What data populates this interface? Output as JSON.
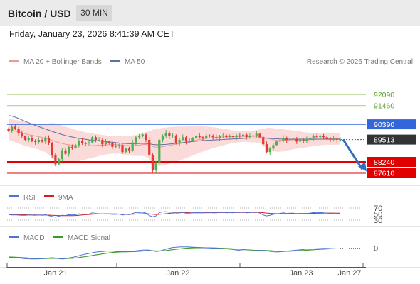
{
  "header": {
    "title": "Bitcoin / USD",
    "timeframe": "30 MIN"
  },
  "datetime": "Friday, January 23, 2026 8:41:39 AM CET",
  "legend": {
    "ma20": "MA 20 + Bollinger Bands",
    "ma50": "MA 50",
    "copyright": "Research © 2026 Trading Central"
  },
  "colors": {
    "bg": "#ebebeb",
    "up": "#4caf50",
    "down": "#e53935",
    "resistance": "#b5d38a",
    "pivot": "#3366dd",
    "support": "#e00000",
    "current": "#333333",
    "ma20": "#ec9a9a",
    "ma50": "#5e6fa3",
    "band": "#fbdada",
    "arrow": "#2f6fbf",
    "rsi": "#4d73d6",
    "rsi_ma": "#d42020",
    "macd": "#4d73d6",
    "macd_signal": "#3c9a2a"
  },
  "chart_data": [
    {
      "type": "candlestick",
      "title": "Bitcoin / USD",
      "ylim": [
        86900,
        93600
      ],
      "x_labels": [
        "Jan 21",
        "Jan 22",
        "Jan 23",
        "Jan 27"
      ],
      "levels": [
        {
          "value": 92090,
          "label": "92090",
          "role": "resistance"
        },
        {
          "value": 91460,
          "label": "91460",
          "role": "resistance"
        },
        {
          "value": 90390,
          "label": "90390",
          "role": "pivot"
        },
        {
          "value": 89513,
          "label": "89513",
          "role": "current"
        },
        {
          "value": 88240,
          "label": "88240",
          "role": "support"
        },
        {
          "value": 87610,
          "label": "87610",
          "role": "support"
        }
      ],
      "closes": [
        90000,
        90250,
        90150,
        89900,
        89700,
        89500,
        89600,
        89450,
        89380,
        89500,
        89400,
        89600,
        89300,
        88600,
        88100,
        88400,
        88900,
        88700,
        89100,
        89050,
        89200,
        89450,
        89300,
        89300,
        89350,
        89650,
        89500,
        89500,
        89250,
        89400,
        89300,
        89100,
        89150,
        89200,
        88800,
        89000,
        88900,
        89350,
        89650,
        89700,
        89800,
        89500,
        88650,
        87750,
        88150,
        89500,
        89700,
        89900,
        89700,
        89750,
        89300,
        89500,
        89650,
        89400,
        89450,
        89600,
        89700,
        89650,
        89600,
        89750,
        89700,
        89650,
        89600,
        89700,
        89750,
        89650,
        89700,
        89650,
        89750,
        89700,
        89800,
        89650,
        89700,
        89750,
        89850,
        89650,
        89250,
        88800,
        89000,
        89200,
        89400,
        89450,
        89600,
        89500,
        89550,
        89550,
        89400,
        89500,
        89450,
        89550,
        89600,
        89700,
        89650,
        89700,
        89650,
        89550,
        89500,
        89550,
        89500,
        89513
      ],
      "ma20": [
        90100,
        90050,
        90000,
        89950,
        89900,
        89850,
        89800,
        89760,
        89720,
        89680,
        89640,
        89600,
        89540,
        89470,
        89400,
        89340,
        89290,
        89250,
        89220,
        89190,
        89170,
        89160,
        89150,
        89150,
        89160,
        89170,
        89180,
        89190,
        89200,
        89210,
        89220,
        89220,
        89220,
        89220,
        89200,
        89180,
        89170,
        89170,
        89180,
        89200,
        89230,
        89240,
        89200,
        89130,
        89080,
        89080,
        89100,
        89140,
        89180,
        89220,
        89250,
        89280,
        89320,
        89360,
        89400,
        89440,
        89480,
        89520,
        89550,
        89580,
        89600,
        89620,
        89640,
        89650,
        89660,
        89670,
        89680,
        89680,
        89680,
        89690,
        89690,
        89690,
        89690,
        89700,
        89700,
        89690,
        89650,
        89600,
        89550,
        89510,
        89480,
        89470,
        89470,
        89480,
        89490,
        89500,
        89500,
        89500,
        89500,
        89500,
        89510,
        89520,
        89530,
        89540,
        89550,
        89560,
        89560,
        89560,
        89560,
        89560
      ],
      "ma50": [
        90900,
        90850,
        90800,
        90720,
        90640,
        90560,
        90480,
        90400,
        90330,
        90260,
        90190,
        90120,
        90050,
        89980,
        89920,
        89860,
        89800,
        89750,
        89700,
        89660,
        89620,
        89590,
        89560,
        89530,
        89500,
        89480,
        89460,
        89440,
        89420,
        89400,
        89380,
        89360,
        89340,
        89320,
        89300,
        89290,
        89280,
        89280,
        89280,
        89290,
        89300,
        89290,
        89270,
        89240,
        89220,
        89220,
        89230,
        89240,
        89260,
        89280,
        89300,
        89320,
        89340,
        89360,
        89380,
        89400,
        89420,
        89440,
        89460,
        89470,
        89480,
        89490,
        89500,
        89510,
        89520,
        89530,
        89540,
        89550,
        89560,
        89570,
        89580,
        89590,
        89600,
        89600,
        89610,
        89610,
        89600,
        89590,
        89580,
        89570,
        89560,
        89550,
        89540,
        89540,
        89540,
        89540,
        89540,
        89540,
        89540,
        89540,
        89540,
        89540,
        89540,
        89540,
        89540,
        89540,
        89540,
        89540,
        89540,
        89540
      ],
      "bb_width": [
        600,
        620,
        640,
        660,
        680,
        700,
        700,
        710,
        720,
        740,
        760,
        800,
        900,
        1000,
        1050,
        1050,
        1030,
        1000,
        980,
        950,
        900,
        870,
        830,
        780,
        730,
        700,
        660,
        620,
        580,
        550,
        520,
        500,
        500,
        500,
        520,
        540,
        560,
        580,
        600,
        620,
        650,
        700,
        800,
        950,
        1050,
        1080,
        1080,
        1060,
        1050,
        1030,
        1000,
        970,
        940,
        900,
        870,
        840,
        800,
        760,
        720,
        680,
        640,
        600,
        560,
        520,
        480,
        440,
        400,
        360,
        340,
        320,
        300,
        300,
        320,
        340,
        360,
        400,
        480,
        580,
        640,
        660,
        660,
        650,
        630,
        600,
        570,
        540,
        510,
        480,
        450,
        420,
        400,
        380,
        360,
        350,
        340,
        340,
        340,
        340,
        340,
        340
      ],
      "forecast": {
        "from": 89513,
        "to": 87610
      }
    },
    {
      "type": "line",
      "title": "RSI",
      "ylim": [
        30,
        70
      ],
      "ticks": [
        {
          "value": 70,
          "label": "70"
        },
        {
          "value": 50,
          "label": "50"
        },
        {
          "value": 30,
          "label": "30"
        }
      ],
      "series": [
        {
          "name": "RSI",
          "values": [
            48,
            47,
            47.5,
            46.5,
            46,
            46,
            47,
            46.5,
            46,
            47,
            46,
            48,
            45,
            42,
            40,
            43,
            46,
            45,
            48,
            47,
            48,
            51,
            49,
            50,
            50,
            54,
            52,
            51,
            50,
            51,
            50,
            49,
            49,
            50,
            47,
            49,
            48,
            52,
            55,
            55,
            56,
            53,
            45,
            41,
            44,
            55,
            57,
            58,
            56,
            57,
            53,
            54,
            55,
            53,
            53,
            54,
            55,
            55,
            54,
            56,
            55,
            54,
            54,
            55,
            56,
            54,
            55,
            54,
            56,
            55,
            57,
            54,
            55,
            56,
            57,
            53,
            47,
            44,
            46,
            49,
            51,
            52,
            54,
            52,
            53,
            53,
            51,
            52,
            51,
            52,
            53,
            55,
            54,
            55,
            54,
            53,
            52,
            53,
            52,
            51
          ]
        },
        {
          "name": "9MA",
          "values": [
            49,
            48.8,
            48.6,
            48.3,
            48,
            47.6,
            47.3,
            47.1,
            46.9,
            46.8,
            46.7,
            46.7,
            46.5,
            46,
            45.3,
            45,
            44.8,
            44.6,
            44.7,
            44.8,
            45.1,
            46,
            46.9,
            47.8,
            48.5,
            49.5,
            50.2,
            50.4,
            50.5,
            50.8,
            50.9,
            50.7,
            50.4,
            50.1,
            49.6,
            49.3,
            49.1,
            49.4,
            50,
            50.6,
            51.2,
            51.5,
            50.8,
            49.5,
            48.6,
            49,
            50,
            51.2,
            52.4,
            53.5,
            54.2,
            54.4,
            54.6,
            54.6,
            54.5,
            54.3,
            54.2,
            54.1,
            54.2,
            54.4,
            54.5,
            54.6,
            54.7,
            54.8,
            54.9,
            54.9,
            54.9,
            54.9,
            55,
            55.1,
            55.2,
            55.2,
            55.3,
            55.4,
            55.5,
            55.3,
            54.4,
            53.3,
            52.4,
            51.8,
            51.3,
            51,
            51,
            51.1,
            51.4,
            51.6,
            51.7,
            51.9,
            52,
            52.1,
            52.2,
            52.4,
            52.6,
            52.9,
            53.1,
            53.2,
            53.2,
            53.2,
            53.1,
            53
          ]
        }
      ]
    },
    {
      "type": "line",
      "title": "MACD",
      "ylim": [
        -420,
        120
      ],
      "ticks": [
        {
          "value": 0,
          "label": "0"
        }
      ],
      "series": [
        {
          "name": "MACD",
          "values": [
            -280,
            -285,
            -290,
            -300,
            -310,
            -320,
            -325,
            -330,
            -330,
            -325,
            -320,
            -310,
            -300,
            -290,
            -300,
            -320,
            -330,
            -320,
            -300,
            -280,
            -260,
            -230,
            -200,
            -180,
            -160,
            -140,
            -120,
            -110,
            -100,
            -90,
            -85,
            -90,
            -95,
            -100,
            -110,
            -110,
            -105,
            -95,
            -80,
            -70,
            -60,
            -55,
            -60,
            -80,
            -100,
            -90,
            -60,
            -30,
            0,
            20,
            30,
            35,
            40,
            40,
            35,
            30,
            25,
            20,
            15,
            10,
            5,
            0,
            -5,
            -10,
            -15,
            -20,
            -30,
            -40,
            -55,
            -70,
            -80,
            -85,
            -85,
            -80,
            -75,
            -70,
            -70,
            -80,
            -95,
            -110,
            -115,
            -110,
            -100,
            -90,
            -80,
            -70,
            -60,
            -50,
            -40,
            -30,
            -25,
            -20,
            -15,
            -10,
            -5,
            -5,
            -10,
            -15,
            -20,
            -20
          ]
        },
        {
          "name": "MACD Signal",
          "values": [
            -270,
            -272,
            -275,
            -280,
            -286,
            -293,
            -300,
            -307,
            -312,
            -316,
            -317,
            -316,
            -313,
            -309,
            -307,
            -310,
            -314,
            -316,
            -314,
            -308,
            -299,
            -287,
            -272,
            -257,
            -241,
            -224,
            -207,
            -190,
            -174,
            -159,
            -144,
            -132,
            -122,
            -115,
            -112,
            -111,
            -110,
            -107,
            -102,
            -95,
            -88,
            -81,
            -77,
            -78,
            -82,
            -84,
            -80,
            -72,
            -60,
            -46,
            -33,
            -22,
            -11,
            -2,
            5,
            10,
            13,
            14,
            14,
            13,
            11,
            8,
            5,
            1,
            -3,
            -7,
            -12,
            -18,
            -25,
            -33,
            -41,
            -49,
            -56,
            -61,
            -64,
            -66,
            -67,
            -70,
            -75,
            -82,
            -89,
            -93,
            -95,
            -94,
            -91,
            -87,
            -82,
            -76,
            -69,
            -62,
            -55,
            -48,
            -41,
            -35,
            -29,
            -24,
            -21,
            -20,
            -20,
            -20
          ]
        }
      ]
    }
  ]
}
